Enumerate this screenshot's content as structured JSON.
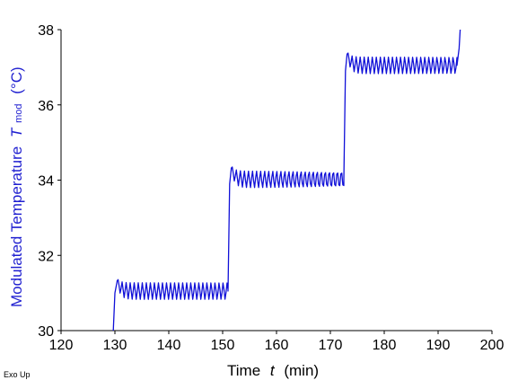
{
  "chart_data": {
    "type": "line",
    "xlabel": "Time",
    "xlabel_symbol": "t",
    "xlabel_unit": "(min)",
    "ylabel": "Modulated Temperature",
    "ylabel_symbol": "T",
    "ylabel_subscript": "mod",
    "ylabel_unit": "(°C)",
    "xlim": [
      120,
      200
    ],
    "ylim": [
      30,
      38
    ],
    "xticks": [
      120,
      130,
      140,
      150,
      160,
      170,
      180,
      190,
      200
    ],
    "yticks": [
      30,
      32,
      34,
      36,
      38
    ],
    "grid": false,
    "line_color": "#1010d8",
    "series": [
      {
        "segments": [
          {
            "type": "ramp",
            "x": [
              129.7,
              130.0,
              130.4
            ],
            "y": [
              30.0,
              31.0,
              31.3
            ]
          },
          {
            "type": "plateau",
            "x_start": 130.4,
            "x_end": 151.0,
            "mean": 31.05,
            "amplitude": 0.22,
            "period_min": 0.75,
            "overshoot": 31.32
          },
          {
            "type": "ramp",
            "x": [
              151.0,
              151.3,
              151.6
            ],
            "y": [
              31.05,
              33.9,
              34.3
            ]
          },
          {
            "type": "plateau",
            "x_start": 151.6,
            "x_end": 172.5,
            "mean": 34.02,
            "amplitude": 0.22,
            "period_min": 0.75,
            "overshoot": 34.32
          },
          {
            "type": "ramp",
            "x": [
              172.5,
              172.8,
              173.1
            ],
            "y": [
              34.02,
              36.9,
              37.35
            ]
          },
          {
            "type": "plateau",
            "x_start": 173.1,
            "x_end": 193.5,
            "mean": 37.05,
            "amplitude": 0.22,
            "period_min": 0.75,
            "overshoot": 37.35
          },
          {
            "type": "ramp",
            "x": [
              193.5,
              193.9,
              194.1
            ],
            "y": [
              37.05,
              37.5,
              38.0
            ]
          }
        ]
      }
    ]
  },
  "footer": {
    "text": "Exo Up"
  }
}
